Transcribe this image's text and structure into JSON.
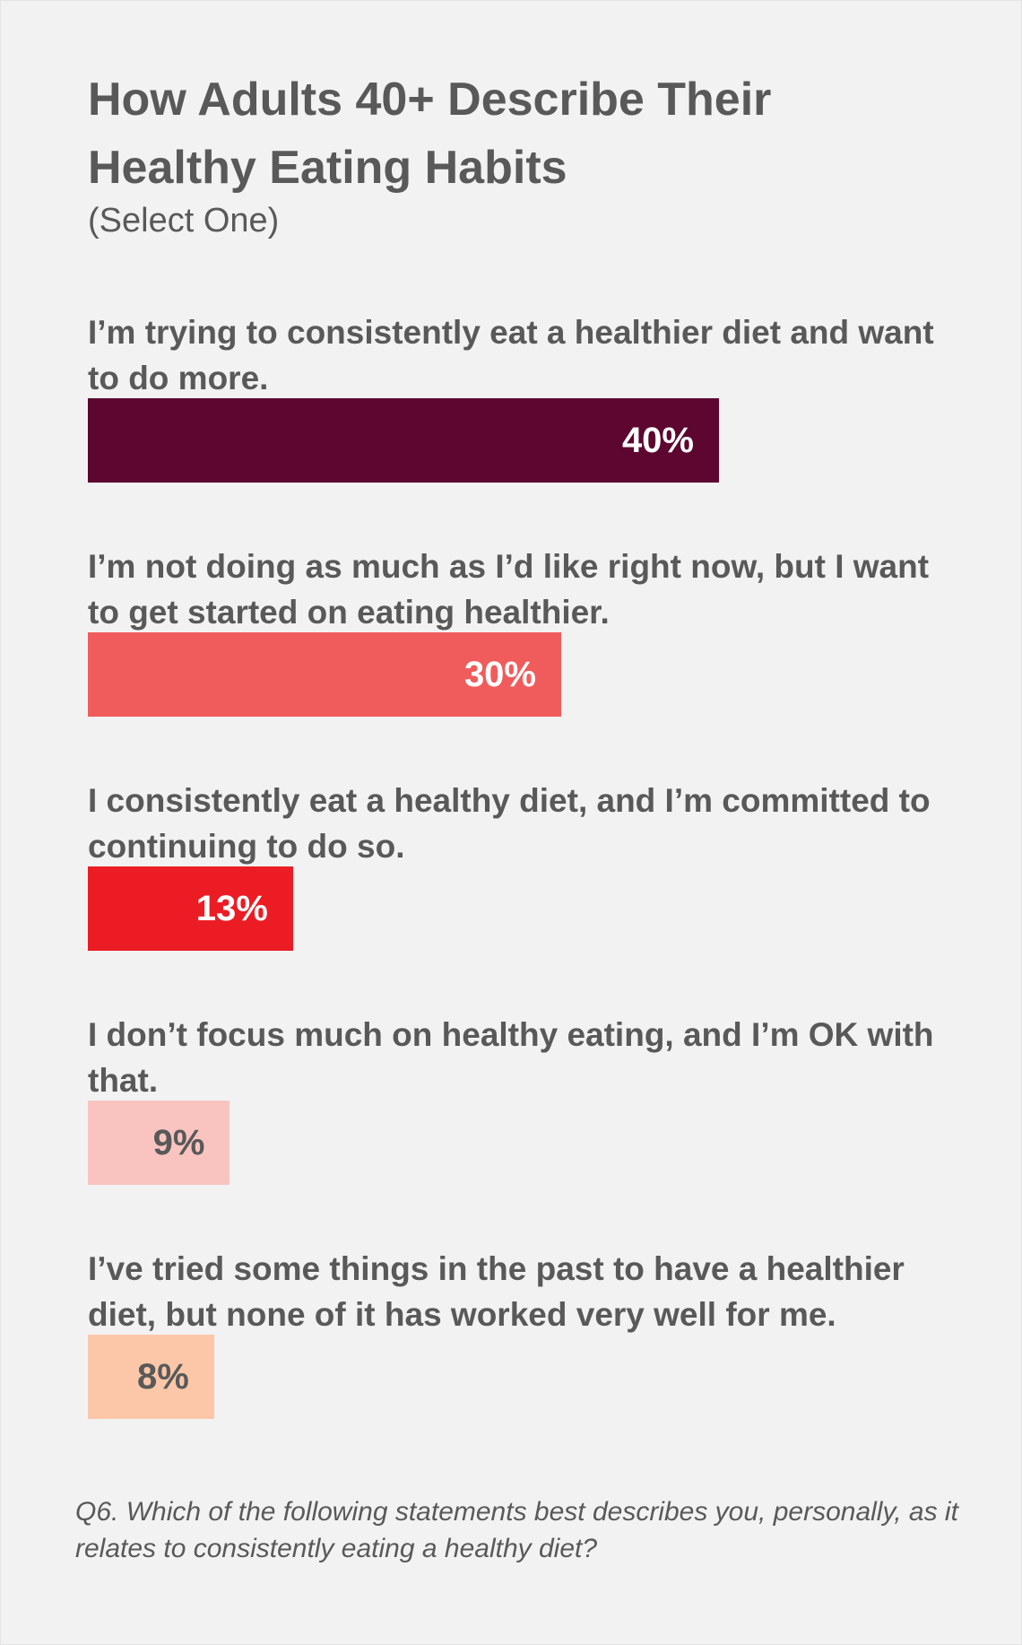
{
  "chart_data": {
    "type": "bar",
    "title": "How Adults 40+ Describe Their Healthy Eating Habits",
    "subtitle": "(Select One)",
    "categories": [
      "I’m trying to consistently eat a healthier diet and want to do more.",
      "I’m not doing as much as I’d like right now, but I want to get started on eating healthier.",
      "I consistently eat a healthy diet, and I’m committed to continuing to do so.",
      "I don’t focus much on healthy eating, and I’m OK with that.",
      "I’ve tried some things in the past to have a healthier diet, but none of it has worked very well for me."
    ],
    "values": [
      40,
      30,
      13,
      9,
      8
    ],
    "value_labels": [
      "40%",
      "30%",
      "13%",
      "9%",
      "8%"
    ],
    "colors": [
      "#5c0630",
      "#f05c5c",
      "#ec1c24",
      "#f9c4c0",
      "#fbc7a8"
    ],
    "note": "Q6. Which of the following statements best describes you, personally, as it relates to consistently eating a healthy diet?"
  }
}
